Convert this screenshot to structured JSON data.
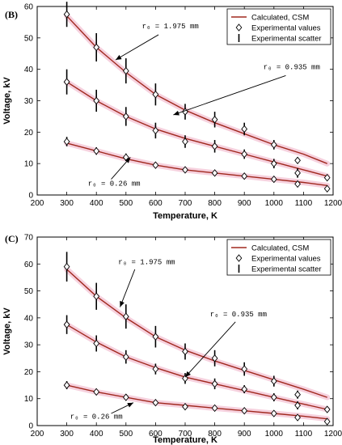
{
  "chart_data": [
    {
      "type": "line",
      "panel": "(B)",
      "xlabel": "Temperature, K",
      "ylabel": "Voltage, kV",
      "xlim": [
        200,
        1200
      ],
      "ylim": [
        0,
        60
      ],
      "xticks": [
        200,
        300,
        400,
        500,
        600,
        700,
        800,
        900,
        1000,
        1100,
        1200
      ],
      "yticks": [
        0,
        10,
        20,
        30,
        40,
        50,
        60
      ],
      "legend": {
        "position": "top-right",
        "entries": [
          "Calculated, CSM",
          "Experimental values",
          "Experimental scatter"
        ]
      },
      "series": [
        {
          "label": "r_c = 1.975 mm",
          "curve_x": [
            300,
            400,
            500,
            600,
            700,
            800,
            900,
            1000,
            1100,
            1180
          ],
          "curve_y": [
            57,
            47,
            39,
            32,
            27,
            23,
            19.5,
            16,
            13,
            10
          ],
          "exp_x": [
            300,
            400,
            500,
            600,
            700,
            800,
            900,
            1000,
            1080
          ],
          "exp_y": [
            57.5,
            47,
            39.5,
            32,
            26.5,
            24,
            21,
            16,
            11
          ],
          "err": [
            4,
            4.5,
            4,
            3.5,
            2.5,
            2.5,
            2,
            1.5,
            1
          ]
        },
        {
          "label": "r_c = 0.935 mm",
          "curve_x": [
            300,
            400,
            500,
            600,
            700,
            800,
            900,
            1000,
            1100,
            1180
          ],
          "curve_y": [
            36,
            30,
            25,
            21,
            18,
            15.5,
            13,
            10.5,
            8,
            6
          ],
          "exp_x": [
            300,
            400,
            500,
            600,
            700,
            800,
            900,
            1000,
            1080,
            1180
          ],
          "exp_y": [
            36,
            30,
            25,
            20.5,
            17,
            15.5,
            13,
            10,
            7,
            5.5
          ],
          "err": [
            4,
            3.5,
            3,
            2.5,
            2,
            2,
            1.5,
            1.5,
            1.5,
            1
          ]
        },
        {
          "label": "r_c = 0.26 mm",
          "curve_x": [
            300,
            400,
            500,
            600,
            700,
            800,
            900,
            1000,
            1100,
            1180
          ],
          "curve_y": [
            16.5,
            14,
            11.5,
            9.5,
            8,
            7,
            6,
            5,
            4,
            3
          ],
          "exp_x": [
            300,
            400,
            500,
            600,
            700,
            800,
            900,
            1000,
            1080,
            1180
          ],
          "exp_y": [
            17,
            14,
            12,
            9.5,
            8,
            7,
            6,
            5,
            3.5,
            2
          ],
          "err": [
            1.5,
            1.2,
            1.2,
            1,
            0.8,
            0.8,
            0.8,
            0.7,
            0.7,
            0.7
          ]
        }
      ],
      "annotations": [
        {
          "text": "r₀ = 1.975 mm",
          "tx": 650,
          "ty": 53,
          "ax": 465,
          "ay": 43,
          "from_x": 610,
          "from_y": 51
        },
        {
          "text": "r₀ = 0.935 mm",
          "tx": 1060,
          "ty": 40,
          "ax": 660,
          "ay": 25.5,
          "from_x": 1040,
          "from_y": 38
        },
        {
          "text": "r₀ = 0.26 mm",
          "tx": 460,
          "ty": 3,
          "ax": 515,
          "ay": 12,
          "from_x": 450,
          "from_y": 5
        }
      ]
    },
    {
      "type": "line",
      "panel": "(C)",
      "xlabel": "Temperature, K",
      "ylabel": "Voltage, kV",
      "xlim": [
        200,
        1200
      ],
      "ylim": [
        0,
        70
      ],
      "xticks": [
        200,
        300,
        400,
        500,
        600,
        700,
        800,
        900,
        1000,
        1100,
        1200
      ],
      "yticks": [
        0,
        10,
        20,
        30,
        40,
        50,
        60,
        70
      ],
      "legend": {
        "position": "top-right",
        "entries": [
          "Calculated, CSM",
          "Experimental values",
          "Experimental scatter"
        ]
      },
      "series": [
        {
          "label": "r_c = 1.975 mm",
          "curve_x": [
            300,
            400,
            500,
            600,
            700,
            800,
            900,
            1000,
            1100,
            1180
          ],
          "curve_y": [
            58,
            48,
            40,
            33,
            28,
            24,
            20.5,
            17,
            13.5,
            10.5
          ],
          "exp_x": [
            300,
            400,
            500,
            600,
            700,
            800,
            900,
            1000,
            1080
          ],
          "exp_y": [
            59,
            48,
            40.5,
            33,
            27.5,
            25,
            21,
            16.5,
            11.5
          ],
          "err": [
            5.5,
            5,
            4.5,
            4,
            3,
            3,
            2.5,
            2,
            1.5
          ]
        },
        {
          "label": "r_c = 0.935 mm",
          "curve_x": [
            300,
            400,
            500,
            600,
            700,
            800,
            900,
            1000,
            1100,
            1180
          ],
          "curve_y": [
            37.5,
            31,
            25.5,
            21.5,
            18,
            15.5,
            13,
            10.5,
            8,
            6
          ],
          "exp_x": [
            300,
            400,
            500,
            600,
            700,
            800,
            900,
            1000,
            1080,
            1180
          ],
          "exp_y": [
            37.5,
            30.5,
            25.5,
            21,
            17.5,
            15.5,
            13.5,
            10.5,
            7.5,
            6
          ],
          "err": [
            3.5,
            3,
            2.5,
            2,
            2,
            2,
            1.5,
            1.5,
            1.5,
            1
          ]
        },
        {
          "label": "r_c = 0.26 mm",
          "curve_x": [
            300,
            400,
            500,
            600,
            700,
            800,
            900,
            1000,
            1100,
            1180
          ],
          "curve_y": [
            15,
            12.5,
            10.5,
            8.5,
            7.5,
            6.5,
            5.5,
            4.5,
            3.5,
            2.5
          ],
          "exp_x": [
            300,
            400,
            500,
            600,
            700,
            800,
            900,
            1000,
            1080,
            1180
          ],
          "exp_y": [
            15,
            12.5,
            10.5,
            8.5,
            7,
            6.5,
            5.5,
            4.5,
            3,
            1.5
          ],
          "err": [
            1.5,
            1.2,
            1.2,
            1,
            1,
            0.8,
            0.8,
            0.8,
            0.8,
            0.8
          ]
        }
      ],
      "annotations": [
        {
          "text": "r₀ = 1.975 mm",
          "tx": 570,
          "ty": 60,
          "ax": 480,
          "ay": 44,
          "from_x": 530,
          "from_y": 58
        },
        {
          "text": "r₀ = 0.935 mm",
          "tx": 880,
          "ty": 40.5,
          "ax": 700,
          "ay": 18,
          "from_x": 870,
          "from_y": 38.5
        },
        {
          "text": "r₀ = 0.26 mm",
          "tx": 400,
          "ty": 2.5,
          "ax": 525,
          "ay": 8.5,
          "from_x": 450,
          "from_y": 4.5
        }
      ]
    }
  ]
}
